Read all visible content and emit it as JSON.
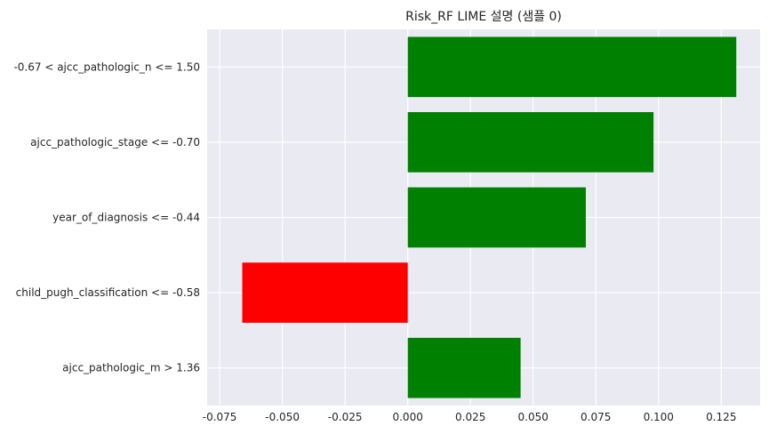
{
  "chart_data": {
    "type": "bar",
    "orientation": "horizontal",
    "title": "Risk_RF LIME 설명 (샘플 0)",
    "xlabel": "",
    "ylabel": "",
    "categories": [
      "-0.67 < ajcc_pathologic_n <= 1.50",
      "ajcc_pathologic_stage <= -0.70",
      "year_of_diagnosis <= -0.44",
      "child_pugh_classification <= -0.58",
      "ajcc_pathologic_m > 1.36"
    ],
    "values": [
      0.131,
      0.098,
      0.071,
      -0.066,
      0.045
    ],
    "xlim": [
      -0.08,
      0.1405
    ],
    "xticks": [
      -0.075,
      -0.05,
      -0.025,
      0.0,
      0.025,
      0.05,
      0.075,
      0.1,
      0.125
    ],
    "xtick_labels": [
      "-0.075",
      "-0.050",
      "-0.025",
      "0.000",
      "0.025",
      "0.050",
      "0.075",
      "0.100",
      "0.125"
    ],
    "grid": true,
    "colors": {
      "positive": "#008000",
      "negative": "#ff0000",
      "background": "#eaeaf2",
      "grid": "#ffffff",
      "text": "#262626"
    }
  }
}
